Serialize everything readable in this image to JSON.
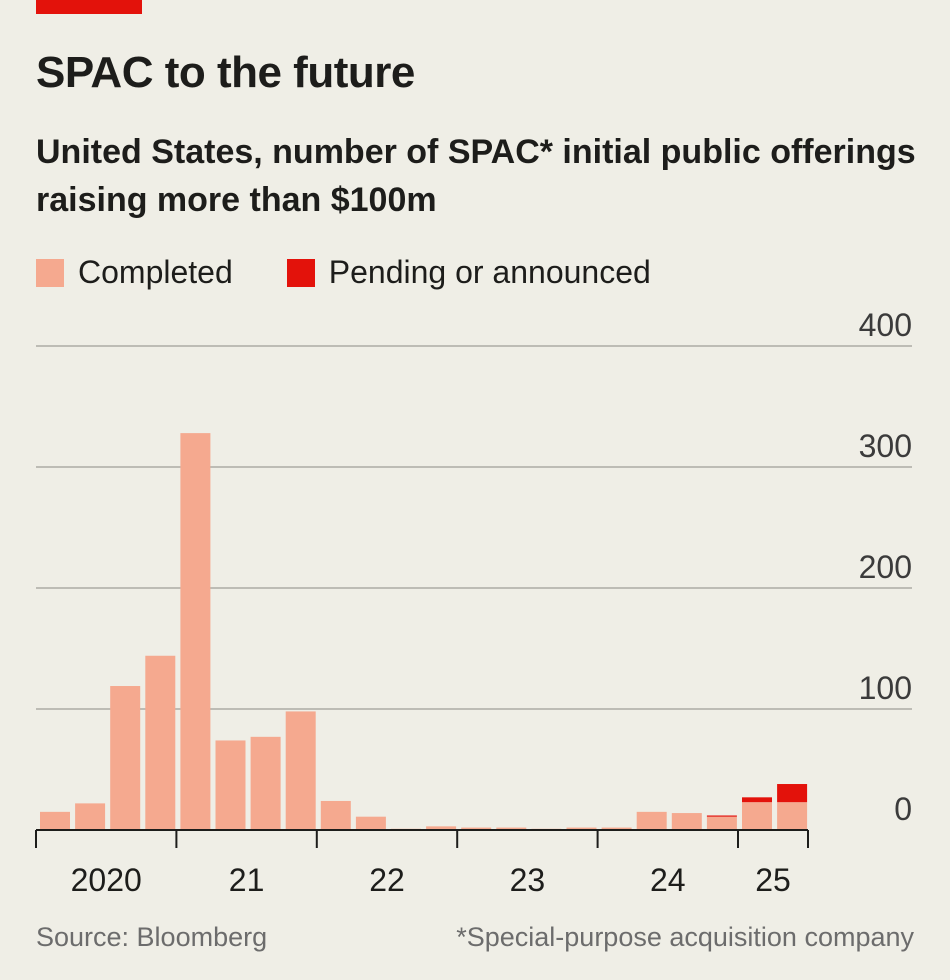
{
  "header": {
    "title": "SPAC to the future",
    "subtitle": "United States, number of SPAC* initial public offerings raising more than $100m"
  },
  "legend": {
    "items": [
      {
        "label": "Completed",
        "color": "#f5a98f"
      },
      {
        "label": "Pending or announced",
        "color": "#e3120b"
      }
    ]
  },
  "footer": {
    "source": "Source: Bloomberg",
    "footnote": "*Special-purpose acquisition company"
  },
  "colors": {
    "accent": "#e3120b",
    "completed": "#f5a98f",
    "pending": "#e3120b",
    "grid": "#bdbcb5",
    "axis": "#1d1d1b",
    "background": "#efeee6"
  },
  "chart_data": {
    "type": "bar",
    "stacked": true,
    "x_labels": [
      "2020",
      "21",
      "22",
      "23",
      "24",
      "25"
    ],
    "categories": [
      "2020 Q1",
      "2020 Q2",
      "2020 Q3",
      "2020 Q4",
      "2021 Q1",
      "2021 Q2",
      "2021 Q3",
      "2021 Q4",
      "2022 Q1",
      "2022 Q2",
      "2022 Q3",
      "2022 Q4",
      "2023 Q1",
      "2023 Q2",
      "2023 Q3",
      "2023 Q4",
      "2024 Q1",
      "2024 Q2",
      "2024 Q3",
      "2024 Q4",
      "2025 Q1",
      "2025 Q2"
    ],
    "series": [
      {
        "name": "Completed",
        "values": [
          15,
          22,
          119,
          144,
          328,
          74,
          77,
          98,
          24,
          11,
          1,
          3,
          2,
          2,
          1,
          2,
          2,
          15,
          14,
          11,
          23,
          23
        ]
      },
      {
        "name": "Pending or announced",
        "values": [
          0,
          0,
          0,
          0,
          0,
          0,
          0,
          0,
          0,
          0,
          0,
          0,
          0,
          0,
          0,
          0,
          0,
          0,
          0,
          1,
          4,
          15
        ]
      }
    ],
    "ylim": [
      0,
      400
    ],
    "yticks": [
      0,
      100,
      200,
      300,
      400
    ],
    "title": "SPAC to the future",
    "xlabel": "",
    "ylabel": ""
  }
}
